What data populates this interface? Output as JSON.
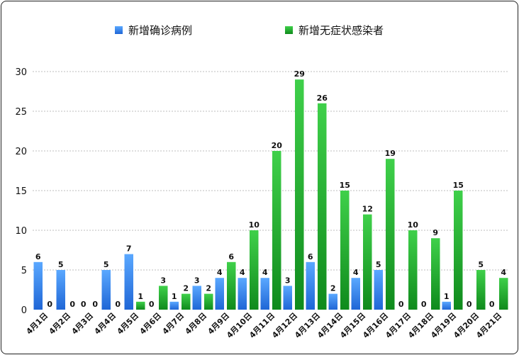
{
  "chart_data": {
    "type": "bar",
    "categories": [
      "4月1日",
      "4月2日",
      "4月3日",
      "4月4日",
      "4月5日",
      "4月6日",
      "4月7日",
      "4月8日",
      "4月9日",
      "4月10日",
      "4月11日",
      "4月12日",
      "4月13日",
      "4月14日",
      "4月15日",
      "4月16日",
      "4月17日",
      "4月18日",
      "4月19日",
      "4月20日",
      "4月21日"
    ],
    "series": [
      {
        "name": "新增确诊病例",
        "color": "#2f7fe0",
        "values": [
          6,
          5,
          0,
          5,
          7,
          0,
          1,
          3,
          4,
          4,
          4,
          3,
          6,
          2,
          4,
          5,
          0,
          0,
          1,
          0,
          0
        ]
      },
      {
        "name": "新增无症状感染者",
        "color": "#1eaa2a",
        "values": [
          0,
          0,
          0,
          0,
          1,
          3,
          2,
          2,
          6,
          10,
          20,
          29,
          26,
          15,
          12,
          19,
          10,
          9,
          15,
          5,
          4
        ]
      }
    ],
    "ylim": [
      0,
      30
    ],
    "yticks": [
      0,
      5,
      10,
      15,
      20,
      25,
      30
    ],
    "grid": true,
    "legend_position": "top"
  }
}
